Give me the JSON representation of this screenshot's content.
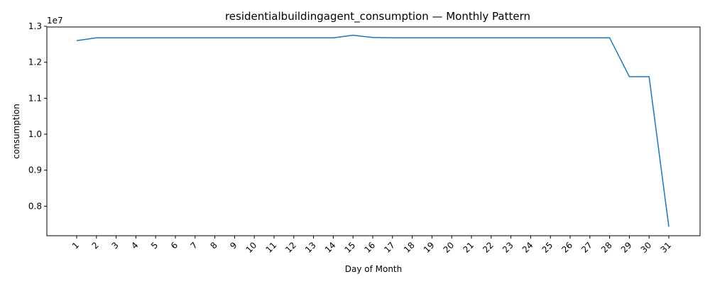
{
  "chart_data": {
    "type": "line",
    "title": "residentialbuildingagent_consumption — Monthly Pattern",
    "xlabel": "Day of Month",
    "ylabel": "consumption",
    "y_offset_label": "1e7",
    "y_scale_factor": 10000000,
    "ylim": [
      7.18,
      12.98
    ],
    "yticks": [
      0.8,
      0.9,
      1.0,
      1.1,
      1.2,
      1.3
    ],
    "ytick_labels": [
      "0.8",
      "0.9",
      "1.0",
      "1.1",
      "1.2",
      "1.3"
    ],
    "grid": false,
    "legend": "none",
    "line_color": "#1f77b4",
    "categories": [
      "1",
      "2",
      "3",
      "4",
      "5",
      "6",
      "7",
      "8",
      "9",
      "10",
      "11",
      "12",
      "13",
      "14",
      "15",
      "16",
      "17",
      "18",
      "19",
      "20",
      "21",
      "22",
      "23",
      "24",
      "25",
      "26",
      "27",
      "28",
      "29",
      "30",
      "31"
    ],
    "series": [
      {
        "values": [
          12.6,
          12.68,
          12.68,
          12.68,
          12.68,
          12.68,
          12.68,
          12.68,
          12.68,
          12.68,
          12.68,
          12.68,
          12.68,
          12.68,
          12.75,
          12.69,
          12.68,
          12.68,
          12.68,
          12.68,
          12.68,
          12.68,
          12.68,
          12.68,
          12.68,
          12.68,
          12.68,
          12.68,
          11.6,
          11.6,
          7.43
        ]
      }
    ]
  }
}
